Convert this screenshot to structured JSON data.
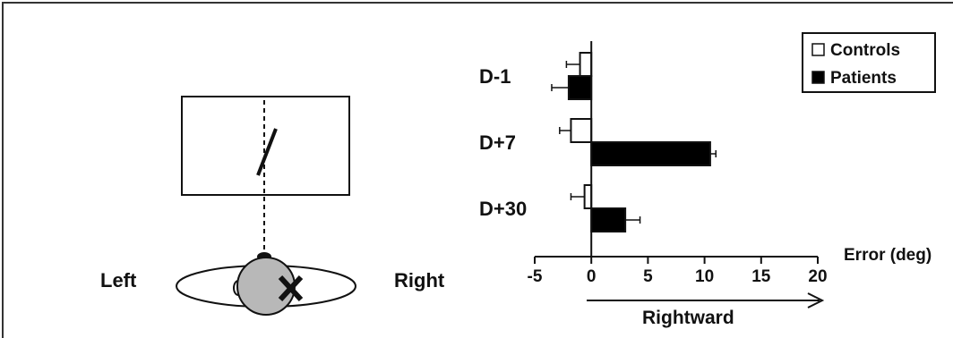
{
  "diagram": {
    "left_label": "Left",
    "right_label": "Right"
  },
  "chart_data": {
    "type": "bar",
    "orientation": "horizontal",
    "categories": [
      "D-1",
      "D+7",
      "D+30"
    ],
    "series": [
      {
        "name": "Controls",
        "color": "#ffffff",
        "values": [
          -1.0,
          -1.8,
          -0.6
        ],
        "errors": [
          1.2,
          1.0,
          1.2
        ]
      },
      {
        "name": "Patients",
        "color": "#000000",
        "values": [
          -2.0,
          10.5,
          3.0
        ],
        "errors": [
          1.5,
          0.5,
          1.3
        ]
      }
    ],
    "xlabel": "Error (deg)",
    "xlim": [
      -5,
      20
    ],
    "xticks": [
      -5,
      0,
      5,
      10,
      15,
      20
    ],
    "direction_label": "Rightward",
    "legend_position": "top-right",
    "grid": false
  }
}
